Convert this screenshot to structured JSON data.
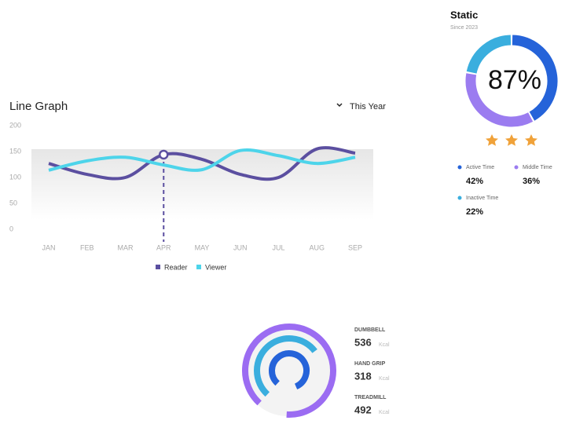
{
  "chart_data": [
    {
      "type": "line",
      "title": "Line Graph",
      "filter": "This Year",
      "categories": [
        "JAN",
        "FEB",
        "MAR",
        "APR",
        "MAY",
        "JUN",
        "JUL",
        "AUG",
        "SEP"
      ],
      "series": [
        {
          "name": "Reader",
          "color": "#5b4fa0",
          "values": [
            127,
            106,
            100,
            144,
            135,
            106,
            100,
            155,
            147
          ]
        },
        {
          "name": "Viewer",
          "color": "#4dd4ea",
          "values": [
            114,
            132,
            139,
            124,
            115,
            152,
            142,
            127,
            139
          ]
        }
      ],
      "ylim": [
        0,
        200
      ],
      "yticks": [
        0,
        50,
        100,
        150,
        200
      ],
      "grid": false
    },
    {
      "type": "donut",
      "title": "Static",
      "subtitle": "Since 2023",
      "center_value": 87,
      "center_label": "87%",
      "categories": [
        "Active Time",
        "Middle Time",
        "Inactive Time"
      ],
      "colors": [
        "#2563d9",
        "#9b7cf0",
        "#3aaede"
      ],
      "values": [
        42,
        36,
        22
      ],
      "value_labels": [
        "42%",
        "36%",
        "22%"
      ]
    },
    {
      "type": "radial",
      "unit": "Kcal",
      "categories": [
        "DUMBBELL",
        "HAND GRIP",
        "TREADMILL"
      ],
      "colors": [
        "#9b6cf2",
        "#3aaede",
        "#2563d9"
      ],
      "values": [
        536,
        318,
        492
      ]
    }
  ]
}
